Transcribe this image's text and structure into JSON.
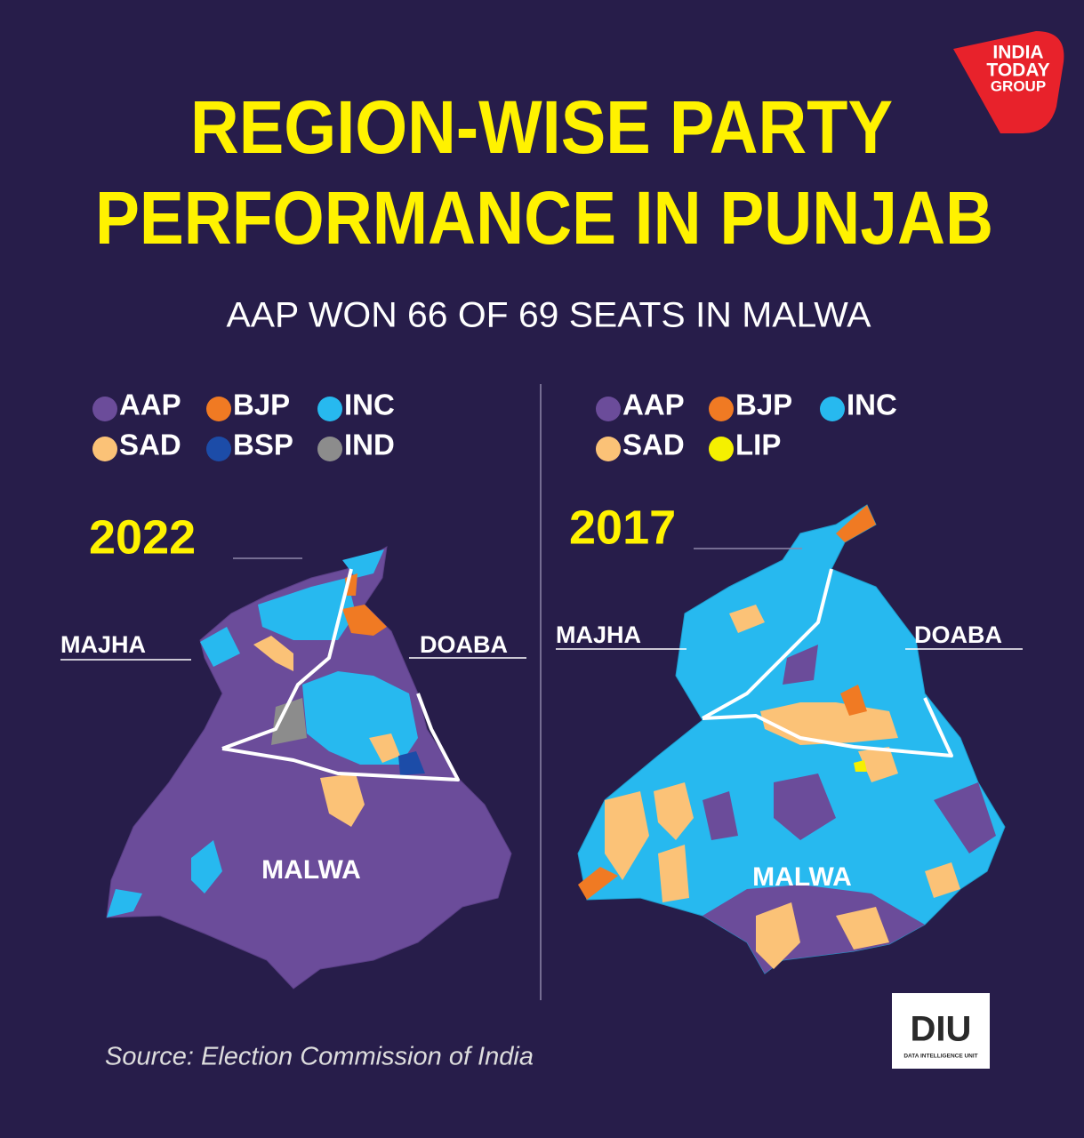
{
  "header": {
    "logo": [
      "INDIA",
      "TODAY",
      "GROUP"
    ],
    "title": [
      "REGION-WISE PARTY",
      "PERFORMANCE IN PUNJAB"
    ],
    "subtitle": "AAP WON 66 OF 69 SEATS IN MALWA"
  },
  "panels": [
    {
      "year": "2022",
      "legend": [
        {
          "label": "AAP",
          "color": "#6b4c9a"
        },
        {
          "label": "BJP",
          "color": "#f07a23"
        },
        {
          "label": "INC",
          "color": "#27b9ef"
        },
        {
          "label": "SAD",
          "color": "#fbc277"
        },
        {
          "label": "BSP",
          "color": "#1c4ca8"
        },
        {
          "label": "IND",
          "color": "#8c8c8c"
        }
      ],
      "regions": {
        "left": "MAJHA",
        "right": "DOABA",
        "bottom": "MALWA"
      }
    },
    {
      "year": "2017",
      "legend": [
        {
          "label": "AAP",
          "color": "#6b4c9a"
        },
        {
          "label": "BJP",
          "color": "#f07a23"
        },
        {
          "label": "INC",
          "color": "#27b9ef"
        },
        {
          "label": "SAD",
          "color": "#fbc277"
        },
        {
          "label": "LIP",
          "color": "#f5f000"
        }
      ],
      "regions": {
        "left": "MAJHA",
        "right": "DOABA",
        "bottom": "MALWA"
      }
    }
  ],
  "footer": {
    "source": "Source: Election Commission of India",
    "badge": "DIU",
    "badge_caption": "DATA INTELLIGENCE UNIT"
  }
}
